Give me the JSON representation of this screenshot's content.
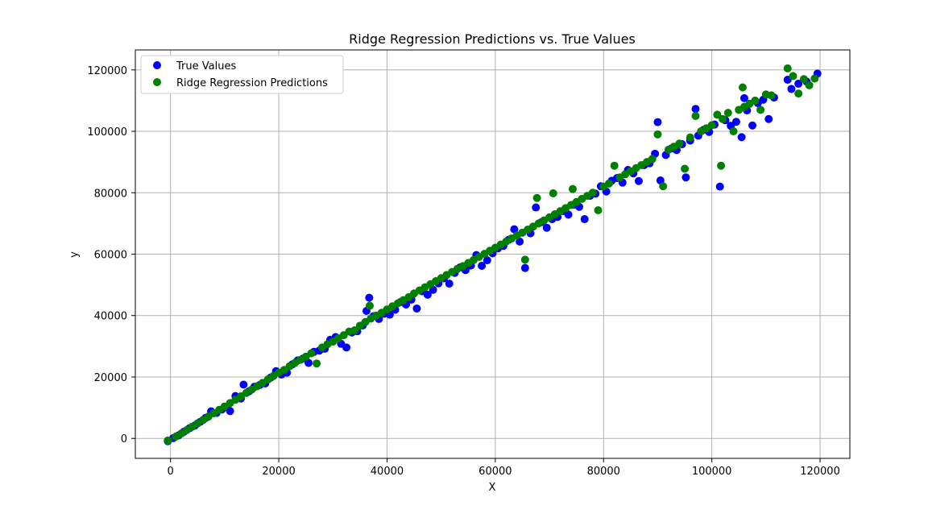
{
  "chart_data": {
    "type": "scatter",
    "title": "Ridge Regression Predictions vs. True Values",
    "xlabel": "X",
    "ylabel": "y",
    "xlim": [
      -6500,
      125500
    ],
    "ylim": [
      -6500,
      126500
    ],
    "xticks": [
      0,
      20000,
      40000,
      60000,
      80000,
      100000,
      120000
    ],
    "yticks": [
      0,
      20000,
      40000,
      60000,
      80000,
      100000,
      120000
    ],
    "grid": true,
    "legend_position": "top-left",
    "series": [
      {
        "name": "True Values",
        "color": "#0000ff",
        "points": [
          [
            -500,
            -900
          ],
          [
            500,
            100
          ],
          [
            1500,
            1000
          ],
          [
            2500,
            2200
          ],
          [
            3500,
            3300
          ],
          [
            4500,
            4200
          ],
          [
            5500,
            5400
          ],
          [
            6500,
            6700
          ],
          [
            7500,
            8800
          ],
          [
            8500,
            8300
          ],
          [
            9500,
            9400
          ],
          [
            10500,
            10300
          ],
          [
            11000,
            8900
          ],
          [
            12000,
            13800
          ],
          [
            13000,
            13000
          ],
          [
            13500,
            17500
          ],
          [
            14500,
            15300
          ],
          [
            15500,
            16800
          ],
          [
            16500,
            17400
          ],
          [
            17500,
            17900
          ],
          [
            18500,
            19800
          ],
          [
            19500,
            21900
          ],
          [
            20500,
            20800
          ],
          [
            21500,
            21400
          ],
          [
            22500,
            24100
          ],
          [
            23500,
            25400
          ],
          [
            24500,
            26000
          ],
          [
            25500,
            24600
          ],
          [
            26500,
            28200
          ],
          [
            27500,
            28600
          ],
          [
            28500,
            29200
          ],
          [
            29500,
            32100
          ],
          [
            30500,
            33000
          ],
          [
            31500,
            30800
          ],
          [
            32500,
            29600
          ],
          [
            33500,
            34500
          ],
          [
            34500,
            34900
          ],
          [
            35500,
            36800
          ],
          [
            36200,
            41500
          ],
          [
            36700,
            45800
          ],
          [
            37500,
            39800
          ],
          [
            38500,
            38900
          ],
          [
            39500,
            40600
          ],
          [
            40500,
            40300
          ],
          [
            41500,
            41900
          ],
          [
            42500,
            44400
          ],
          [
            43500,
            43600
          ],
          [
            44500,
            45200
          ],
          [
            45500,
            42300
          ],
          [
            46500,
            47900
          ],
          [
            47500,
            46800
          ],
          [
            48500,
            48400
          ],
          [
            49500,
            50500
          ],
          [
            50500,
            52100
          ],
          [
            51500,
            50400
          ],
          [
            52500,
            53900
          ],
          [
            53500,
            55700
          ],
          [
            54500,
            54800
          ],
          [
            55500,
            56300
          ],
          [
            56500,
            59700
          ],
          [
            57500,
            56200
          ],
          [
            58500,
            58000
          ],
          [
            59500,
            60300
          ],
          [
            60500,
            61900
          ],
          [
            61500,
            62700
          ],
          [
            62500,
            64700
          ],
          [
            63500,
            68100
          ],
          [
            64500,
            64100
          ],
          [
            65500,
            55500
          ],
          [
            66500,
            66800
          ],
          [
            67500,
            75200
          ],
          [
            68500,
            70400
          ],
          [
            69500,
            68600
          ],
          [
            70500,
            71400
          ],
          [
            71500,
            72100
          ],
          [
            72500,
            74000
          ],
          [
            73500,
            72900
          ],
          [
            74500,
            76100
          ],
          [
            75500,
            75400
          ],
          [
            76500,
            71400
          ],
          [
            77500,
            79000
          ],
          [
            78500,
            79700
          ],
          [
            79500,
            82100
          ],
          [
            80500,
            80400
          ],
          [
            81500,
            83900
          ],
          [
            82500,
            84800
          ],
          [
            83500,
            83300
          ],
          [
            84500,
            87400
          ],
          [
            85500,
            86300
          ],
          [
            86500,
            83800
          ],
          [
            87500,
            89000
          ],
          [
            88500,
            89600
          ],
          [
            89500,
            92700
          ],
          [
            90000,
            103000
          ],
          [
            90500,
            84000
          ],
          [
            91500,
            92300
          ],
          [
            92500,
            94400
          ],
          [
            93500,
            93900
          ],
          [
            94500,
            95800
          ],
          [
            95200,
            85000
          ],
          [
            96000,
            97000
          ],
          [
            97000,
            107300
          ],
          [
            97500,
            98600
          ],
          [
            98500,
            100500
          ],
          [
            99500,
            99800
          ],
          [
            100500,
            102200
          ],
          [
            101500,
            82000
          ],
          [
            102500,
            103600
          ],
          [
            103500,
            101800
          ],
          [
            104500,
            103100
          ],
          [
            105500,
            98100
          ],
          [
            106000,
            110800
          ],
          [
            106500,
            106800
          ],
          [
            107500,
            101900
          ],
          [
            108500,
            109200
          ],
          [
            109500,
            110300
          ],
          [
            110500,
            104000
          ],
          [
            111500,
            111000
          ],
          [
            114000,
            116800
          ],
          [
            114700,
            113800
          ],
          [
            116000,
            115500
          ],
          [
            117500,
            116200
          ],
          [
            119500,
            118800
          ]
        ]
      },
      {
        "name": "Ridge Regression Predictions",
        "color": "#008000",
        "points": [
          [
            -500,
            -700
          ],
          [
            1000,
            600
          ],
          [
            2000,
            1600
          ],
          [
            3000,
            2700
          ],
          [
            4000,
            3800
          ],
          [
            5000,
            4900
          ],
          [
            6000,
            6000
          ],
          [
            7000,
            7100
          ],
          [
            8000,
            8200
          ],
          [
            9000,
            9300
          ],
          [
            10000,
            10400
          ],
          [
            11000,
            11500
          ],
          [
            12000,
            12600
          ],
          [
            13000,
            13700
          ],
          [
            14000,
            14800
          ],
          [
            15000,
            15900
          ],
          [
            16000,
            17000
          ],
          [
            17000,
            18100
          ],
          [
            18000,
            19200
          ],
          [
            19000,
            20300
          ],
          [
            20000,
            21400
          ],
          [
            21000,
            22300
          ],
          [
            22000,
            23500
          ],
          [
            23000,
            24600
          ],
          [
            24000,
            25600
          ],
          [
            25000,
            26600
          ],
          [
            26000,
            27700
          ],
          [
            27000,
            24400
          ],
          [
            28000,
            29600
          ],
          [
            29000,
            30700
          ],
          [
            30000,
            31500
          ],
          [
            31000,
            32600
          ],
          [
            32000,
            33600
          ],
          [
            33000,
            34800
          ],
          [
            34000,
            35200
          ],
          [
            35000,
            36700
          ],
          [
            36000,
            37900
          ],
          [
            36800,
            43200
          ],
          [
            37000,
            39000
          ],
          [
            38000,
            40000
          ],
          [
            39000,
            40900
          ],
          [
            40000,
            42000
          ],
          [
            41000,
            43000
          ],
          [
            42000,
            44000
          ],
          [
            43000,
            45000
          ],
          [
            44000,
            46000
          ],
          [
            45000,
            47200
          ],
          [
            46000,
            48200
          ],
          [
            47000,
            49200
          ],
          [
            48000,
            50200
          ],
          [
            49000,
            51200
          ],
          [
            50000,
            52200
          ],
          [
            51000,
            53200
          ],
          [
            52000,
            54200
          ],
          [
            53000,
            55200
          ],
          [
            54000,
            56100
          ],
          [
            55000,
            57100
          ],
          [
            56000,
            58100
          ],
          [
            57000,
            59100
          ],
          [
            58000,
            60100
          ],
          [
            59000,
            61100
          ],
          [
            60000,
            62100
          ],
          [
            61000,
            63100
          ],
          [
            62000,
            64100
          ],
          [
            63000,
            65100
          ],
          [
            64000,
            66100
          ],
          [
            65000,
            67000
          ],
          [
            65500,
            58200
          ],
          [
            66000,
            68000
          ],
          [
            67000,
            69000
          ],
          [
            67700,
            78300
          ],
          [
            68000,
            70000
          ],
          [
            69000,
            71000
          ],
          [
            70000,
            72000
          ],
          [
            70700,
            79800
          ],
          [
            71000,
            73000
          ],
          [
            72000,
            74000
          ],
          [
            73000,
            75000
          ],
          [
            74000,
            76000
          ],
          [
            74300,
            81200
          ],
          [
            75000,
            77000
          ],
          [
            76000,
            78000
          ],
          [
            77000,
            79000
          ],
          [
            78000,
            80000
          ],
          [
            79000,
            74300
          ],
          [
            80000,
            82000
          ],
          [
            81000,
            83000
          ],
          [
            82000,
            88800
          ],
          [
            83000,
            85000
          ],
          [
            84000,
            86000
          ],
          [
            85000,
            87000
          ],
          [
            86000,
            88000
          ],
          [
            87000,
            89000
          ],
          [
            88000,
            90000
          ],
          [
            89000,
            91000
          ],
          [
            90000,
            99000
          ],
          [
            91000,
            82100
          ],
          [
            92000,
            94000
          ],
          [
            93000,
            95000
          ],
          [
            94000,
            96000
          ],
          [
            95000,
            87800
          ],
          [
            96000,
            98000
          ],
          [
            97000,
            105000
          ],
          [
            98000,
            100000
          ],
          [
            99000,
            101000
          ],
          [
            100000,
            102000
          ],
          [
            101000,
            105400
          ],
          [
            101700,
            88800
          ],
          [
            102000,
            104000
          ],
          [
            103000,
            106000
          ],
          [
            104000,
            100000
          ],
          [
            105000,
            107000
          ],
          [
            105700,
            114300
          ],
          [
            106000,
            108000
          ],
          [
            107000,
            109000
          ],
          [
            108000,
            110000
          ],
          [
            109000,
            107000
          ],
          [
            110000,
            112000
          ],
          [
            111000,
            111700
          ],
          [
            114000,
            120500
          ],
          [
            115000,
            118000
          ],
          [
            116000,
            112300
          ],
          [
            117000,
            117000
          ],
          [
            118000,
            115000
          ],
          [
            119000,
            117200
          ]
        ]
      }
    ]
  }
}
